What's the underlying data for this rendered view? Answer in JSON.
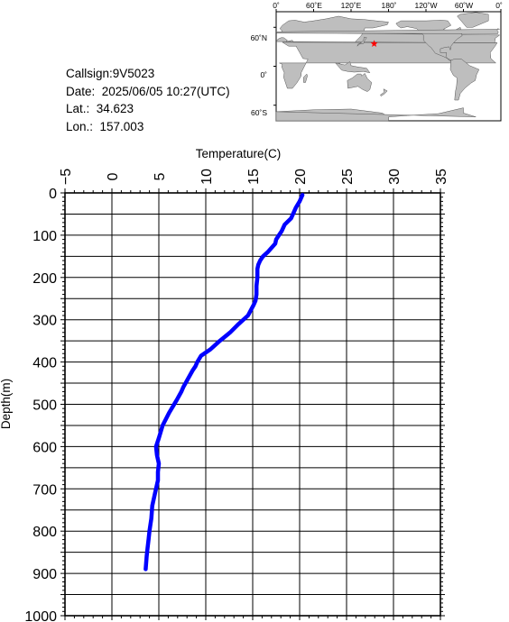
{
  "station": {
    "callsign": "Callsign:9V5023",
    "date": "Date:  2025/06/05 10:27(UTC)",
    "lat": "Lat.:  34.623",
    "lon": "Lon.:  157.003"
  },
  "map": {
    "lon_ticks": [
      "0˚",
      "60˚E",
      "120˚E",
      "180˚",
      "120˚W",
      "60˚W",
      "0˚"
    ],
    "lat_ticks": [
      "60˚N",
      "0˚",
      "60˚S"
    ],
    "marker": {
      "lat": 34.623,
      "lon": 157.003,
      "color": "#ff0000"
    },
    "colors": {
      "ocean": "#ffffff",
      "land": "#bebebe"
    }
  },
  "chart_data": {
    "type": "line",
    "xlabel": "Temperature(C)",
    "ylabel": "Depth(m)",
    "xlim": [
      -5,
      35
    ],
    "ylim": [
      0,
      1000
    ],
    "x_ticks": [
      -5,
      0,
      5,
      10,
      15,
      20,
      25,
      30,
      35
    ],
    "y_ticks": [
      0,
      100,
      200,
      300,
      400,
      500,
      600,
      700,
      800,
      900,
      1000
    ],
    "grid": true,
    "line_color": "#0000ff",
    "series": [
      {
        "x": [
          20.3,
          20.0,
          19.6,
          19.1,
          18.4,
          18.1,
          17.8,
          17.5,
          17.4,
          17.0,
          16.6,
          16.1,
          15.8,
          15.6,
          15.5,
          15.5,
          15.4,
          15.4,
          15.3,
          15.1,
          14.5,
          13.5,
          12.6,
          11.5,
          10.5,
          9.5,
          9.1,
          8.9,
          8.6,
          7.6,
          7.4,
          6.9,
          6.1,
          5.4,
          5.0,
          4.7,
          4.8,
          5.0,
          4.9,
          4.9,
          4.6,
          4.3,
          4.2,
          4.0,
          3.9,
          3.8,
          3.7,
          3.6
        ],
        "y": [
          5,
          20,
          35,
          60,
          75,
          90,
          100,
          110,
          120,
          130,
          140,
          150,
          160,
          170,
          180,
          200,
          220,
          240,
          255,
          265,
          290,
          310,
          330,
          350,
          370,
          385,
          400,
          410,
          420,
          460,
          470,
          490,
          520,
          550,
          580,
          600,
          620,
          640,
          660,
          680,
          710,
          740,
          770,
          800,
          820,
          840,
          860,
          890
        ]
      }
    ]
  }
}
